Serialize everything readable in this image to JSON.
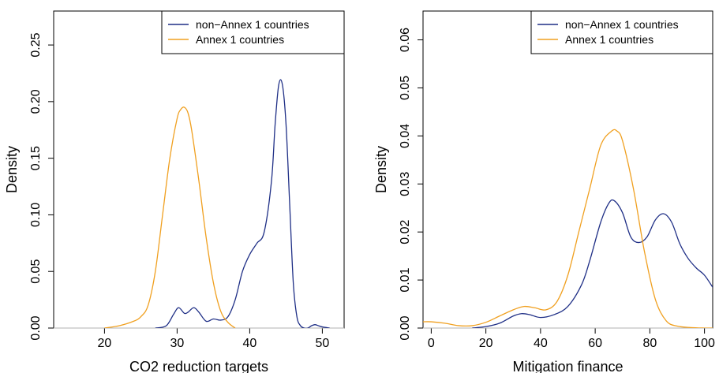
{
  "chart_data": [
    {
      "type": "line",
      "xlabel": "CO2 reduction targets",
      "ylabel": "Density",
      "xlim": [
        13,
        53
      ],
      "ylim": [
        0,
        0.28
      ],
      "xticks": [
        20,
        30,
        40,
        50
      ],
      "yticks": [
        0.0,
        0.05,
        0.1,
        0.15,
        0.2,
        0.25
      ],
      "xtick_labels": [
        "20",
        "30",
        "40",
        "50"
      ],
      "ytick_labels": [
        "0.00",
        "0.05",
        "0.10",
        "0.15",
        "0.20",
        "0.25"
      ],
      "legend_position": "top-right",
      "grid": false,
      "series": [
        {
          "name": "non−Annex 1 countries",
          "color": "#1f2f86",
          "x": [
            27,
            28.5,
            29.5,
            30.2,
            31,
            31.5,
            32.3,
            33,
            34,
            35,
            36,
            37,
            38,
            39,
            40,
            41,
            42,
            43,
            43.5,
            44,
            44.5,
            45,
            45.5,
            46,
            46.5,
            47,
            47.5,
            48,
            48.5,
            49,
            49.5,
            50,
            51
          ],
          "y": [
            0.0,
            0.002,
            0.012,
            0.018,
            0.013,
            0.014,
            0.018,
            0.014,
            0.006,
            0.008,
            0.007,
            0.01,
            0.025,
            0.05,
            0.065,
            0.075,
            0.085,
            0.13,
            0.18,
            0.215,
            0.215,
            0.18,
            0.11,
            0.04,
            0.01,
            0.002,
            0.0,
            0.0,
            0.002,
            0.003,
            0.002,
            0.001,
            0.0
          ]
        },
        {
          "name": "Annex 1 countries",
          "color": "#f0a020",
          "x": [
            20,
            22,
            24,
            25,
            26,
            27,
            28,
            29,
            30,
            30.5,
            31,
            31.5,
            32,
            33,
            34,
            35,
            36,
            37,
            38
          ],
          "y": [
            0.0,
            0.002,
            0.006,
            0.01,
            0.02,
            0.05,
            0.1,
            0.15,
            0.185,
            0.193,
            0.195,
            0.19,
            0.175,
            0.13,
            0.08,
            0.04,
            0.015,
            0.005,
            0.0
          ]
        }
      ]
    },
    {
      "type": "line",
      "xlabel": "Mitigation finance",
      "ylabel": "Density",
      "xlim": [
        -3,
        103
      ],
      "ylim": [
        0,
        0.066
      ],
      "xticks": [
        0,
        20,
        40,
        60,
        80,
        100
      ],
      "yticks": [
        0.0,
        0.01,
        0.02,
        0.03,
        0.04,
        0.05,
        0.06
      ],
      "xtick_labels": [
        "0",
        "20",
        "40",
        "60",
        "80",
        "100"
      ],
      "ytick_labels": [
        "0.00",
        "0.01",
        "0.02",
        "0.03",
        "0.04",
        "0.05",
        "0.06"
      ],
      "legend_position": "top-right",
      "grid": false,
      "series": [
        {
          "name": "non−Annex 1 countries",
          "color": "#1f2f86",
          "x": [
            15,
            20,
            25,
            30,
            33,
            36,
            40,
            45,
            50,
            55,
            58,
            62,
            65,
            67,
            70,
            73,
            76,
            79,
            82,
            85,
            88,
            91,
            94,
            97,
            100,
            103
          ],
          "y": [
            0.0,
            0.0003,
            0.001,
            0.0025,
            0.003,
            0.0028,
            0.0022,
            0.0028,
            0.0045,
            0.009,
            0.014,
            0.022,
            0.026,
            0.0265,
            0.024,
            0.019,
            0.0178,
            0.019,
            0.0225,
            0.0238,
            0.022,
            0.0175,
            0.0145,
            0.0125,
            0.011,
            0.0085
          ]
        },
        {
          "name": "Annex 1 countries",
          "color": "#f0a020",
          "x": [
            -3,
            0,
            5,
            10,
            15,
            20,
            25,
            30,
            34,
            38,
            42,
            46,
            50,
            54,
            58,
            62,
            66,
            68,
            70,
            74,
            78,
            82,
            86,
            90,
            95,
            100,
            103
          ],
          "y": [
            0.0013,
            0.0013,
            0.001,
            0.0005,
            0.0005,
            0.0012,
            0.0025,
            0.0038,
            0.0045,
            0.0042,
            0.0038,
            0.0055,
            0.011,
            0.02,
            0.029,
            0.038,
            0.041,
            0.041,
            0.039,
            0.029,
            0.016,
            0.006,
            0.0015,
            0.0004,
            0.0001,
            0.0,
            0.0
          ]
        }
      ]
    }
  ]
}
